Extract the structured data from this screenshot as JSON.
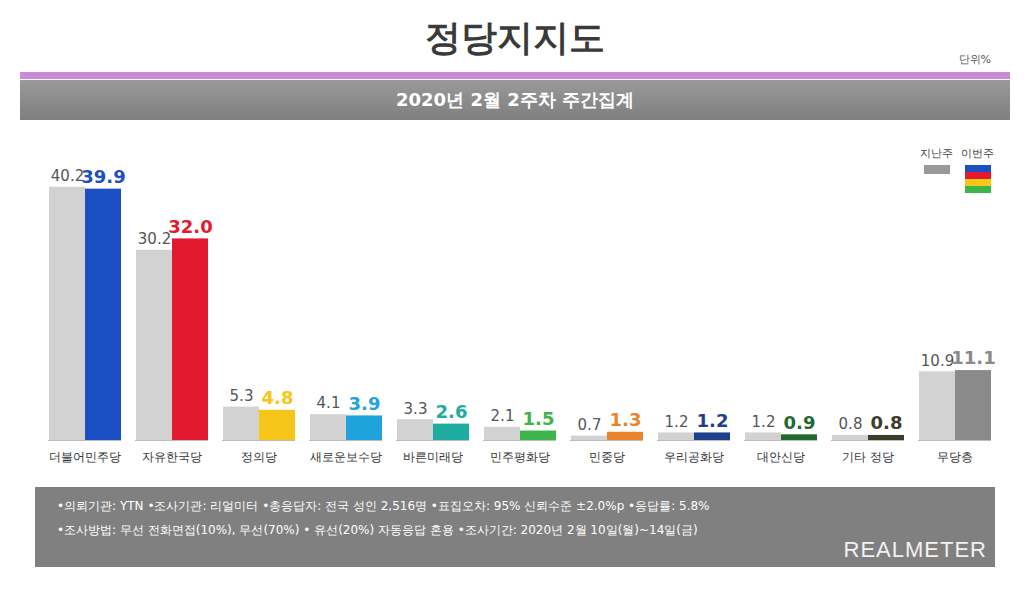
{
  "chart_data": {
    "type": "bar",
    "title": "정당지지도",
    "unit": "단위%",
    "subtitle": "2020년 2월 2주차 주간집계",
    "categories": [
      "더불어민주당",
      "자유한국당",
      "정의당",
      "새로운보수당",
      "바른미래당",
      "민주평화당",
      "민중당",
      "우리공화당",
      "대안신당",
      "기타 정당",
      "무당층"
    ],
    "series": [
      {
        "name": "지난주",
        "color": "#d2d2d2",
        "values": [
          40.2,
          30.2,
          5.3,
          4.1,
          3.3,
          2.1,
          0.7,
          1.2,
          1.2,
          0.8,
          10.9
        ],
        "value_labels": [
          "40.2",
          "30.2",
          "5.3",
          "4.1",
          "3.3",
          "2.1",
          "0.7",
          "1.2",
          "1.2",
          "0.8",
          "10.9"
        ]
      },
      {
        "name": "이번주",
        "colors": [
          "#1c4fc3",
          "#e3192f",
          "#f6c619",
          "#1ea3dc",
          "#1eaba0",
          "#3db54b",
          "#e8842b",
          "#1d3f8e",
          "#1f6b2f",
          "#3d3b2c",
          "#8a8a8a"
        ],
        "values": [
          39.9,
          32.0,
          4.8,
          3.9,
          2.6,
          1.5,
          1.3,
          1.2,
          0.9,
          0.8,
          11.1
        ],
        "value_labels": [
          "39.9",
          "32.0",
          "4.8",
          "3.9",
          "2.6",
          "1.5",
          "1.3",
          "1.2",
          "0.9",
          "0.8",
          "11.1"
        ]
      }
    ],
    "ylim": [
      0,
      50
    ],
    "tick_labels": "x",
    "grid": false,
    "data_labels": true,
    "legend": "top-right",
    "notes": [
      "•의뢰기관: YTN •조사기관: 리얼미터 •총응답자: 전국 성인 2,516명 •표집오차: 95% 신뢰수준 ±2.0%p •응답률: 5.8%",
      "•조사방법: 무선 전화면접(10%), 무선(70%) • 유선(20%) 자동응답 혼용 •조사기간: 2020년 2월 10일(월)~14일(금)"
    ],
    "logo": "REALMETER"
  }
}
